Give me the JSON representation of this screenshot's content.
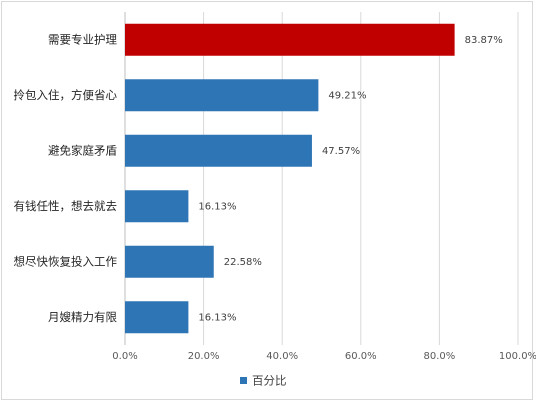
{
  "chart_data": {
    "type": "bar",
    "orientation": "horizontal",
    "categories": [
      "需要专业护理",
      "拎包入住，方便省心",
      "避免家庭矛盾",
      "有钱任性，想去就去",
      "想尽快恢复投入工作",
      "月嫂精力有限"
    ],
    "series": [
      {
        "name": "百分比",
        "values": [
          83.87,
          49.21,
          47.57,
          16.13,
          22.58,
          16.13
        ],
        "value_labels": [
          "83.87%",
          "49.21%",
          "47.57%",
          "16.13%",
          "22.58%",
          "16.13%"
        ]
      }
    ],
    "xlim": [
      0,
      100
    ],
    "x_ticks": [
      0,
      20,
      40,
      60,
      80,
      100
    ],
    "x_tick_labels": [
      "0.0%",
      "20.0%",
      "40.0%",
      "60.0%",
      "80.0%",
      "100.0%"
    ],
    "grid": "vertical",
    "legend_position": "bottom",
    "colors": {
      "default_bar": "#2e75b6",
      "highlight_bar": "#c00000",
      "grid": "#d9d9d9"
    },
    "highlight_index": 0
  }
}
